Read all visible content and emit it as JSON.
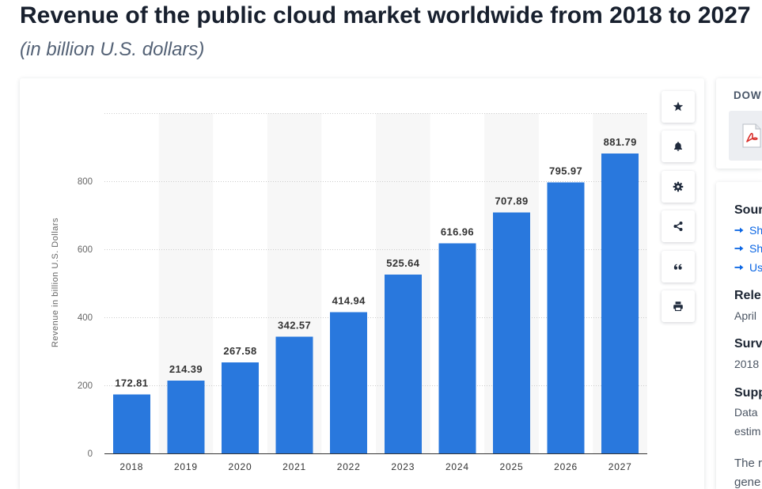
{
  "colors": {
    "bar": "#2978dd",
    "band": "#f7f7f7",
    "title": "#18202e",
    "link": "#0b66e4",
    "pdf_red": "#d9302c"
  },
  "toolbar": {
    "buttons": [
      {
        "icon": "star-icon"
      },
      {
        "icon": "bell-icon"
      },
      {
        "icon": "gear-icon"
      },
      {
        "icon": "share-icon"
      },
      {
        "icon": "quote-icon"
      },
      {
        "icon": "print-icon"
      }
    ]
  },
  "download_panel": {
    "heading": "DOW",
    "file_icon": "pdf-file-icon"
  },
  "info_panel": {
    "source": {
      "heading": "Sour",
      "link_icon": "arrow-right-icon",
      "links": [
        "Sh",
        "Sh",
        "Us"
      ]
    },
    "release": {
      "heading": "Rele",
      "value": "April"
    },
    "survey": {
      "heading": "Surv",
      "value": "2018"
    },
    "supplementary": {
      "heading": "Supp",
      "lines": [
        "Data",
        "estim"
      ]
    },
    "description": {
      "lines": [
        "The r",
        "gene"
      ]
    }
  },
  "chart_data": {
    "type": "bar",
    "title": "Revenue of the public cloud market worldwide from 2018 to 2027",
    "subtitle": "(in billion U.S. dollars)",
    "categories": [
      "2018",
      "2019",
      "2020",
      "2021",
      "2022",
      "2023",
      "2024",
      "2025",
      "2026",
      "2027"
    ],
    "values": [
      172.81,
      214.39,
      267.58,
      342.57,
      414.94,
      525.64,
      616.96,
      707.89,
      795.97,
      881.79
    ],
    "ylabel": "Revenue in billion U.S. Dollars",
    "ylim": [
      0,
      1000
    ],
    "yticks": [
      0,
      200,
      400,
      600,
      800
    ],
    "grid": true,
    "data_labels": true
  }
}
